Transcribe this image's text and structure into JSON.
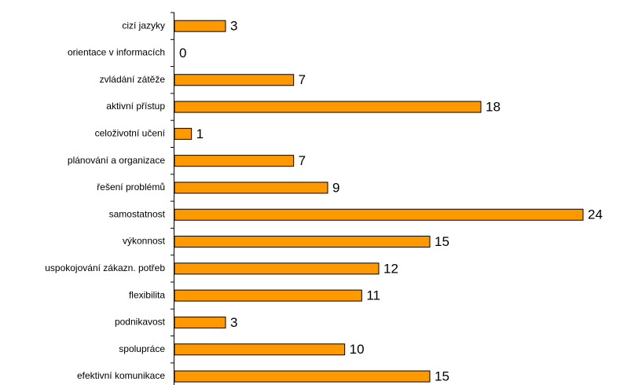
{
  "chart_data": {
    "type": "bar",
    "orientation": "horizontal",
    "categories": [
      "cizí jazyky",
      "orientace v informacích",
      "zvládání zátěže",
      "aktivní přístup",
      "celoživotní učení",
      "plánování a organizace",
      "řešení problémů",
      "samostatnost",
      "výkonnost",
      "uspokojování zákazn. potřeb",
      "flexibilita",
      "podnikavost",
      "spolupráce",
      "efektivní komunikace"
    ],
    "values": [
      3,
      0,
      7,
      18,
      1,
      7,
      9,
      24,
      15,
      12,
      11,
      3,
      10,
      15
    ],
    "data_labels": [
      "3",
      "0",
      "7",
      "18",
      "1",
      "7",
      "9",
      "24",
      "15",
      "12",
      "11",
      "3",
      "10",
      "15"
    ],
    "xlim": [
      0,
      24
    ],
    "grid": false,
    "legend": "none",
    "bar_color": "#FF9900",
    "bar_edge_color": "#000000"
  }
}
